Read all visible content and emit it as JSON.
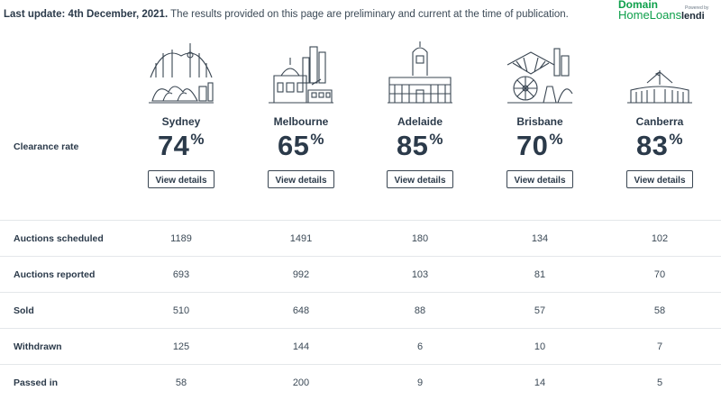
{
  "update": {
    "bold": "Last update: 4th December, 2021.",
    "text": " The results provided on this page are preliminary and current at the time of publication."
  },
  "brand": {
    "line1": "Domain",
    "line2": "HomeLoans",
    "powered": "Powered by",
    "partner": "lendi"
  },
  "clearance_label": "Clearance rate",
  "view_label": "View details",
  "cities": [
    {
      "name": "Sydney",
      "rate": "74",
      "icon": "sydney-skyline-icon"
    },
    {
      "name": "Melbourne",
      "rate": "65",
      "icon": "melbourne-skyline-icon"
    },
    {
      "name": "Adelaide",
      "rate": "85",
      "icon": "adelaide-skyline-icon"
    },
    {
      "name": "Brisbane",
      "rate": "70",
      "icon": "brisbane-skyline-icon"
    },
    {
      "name": "Canberra",
      "rate": "83",
      "icon": "canberra-skyline-icon"
    }
  ],
  "pct_symbol": "%",
  "rows": [
    {
      "label": "Auctions scheduled",
      "values": [
        "1189",
        "1491",
        "180",
        "134",
        "102"
      ]
    },
    {
      "label": "Auctions reported",
      "values": [
        "693",
        "992",
        "103",
        "81",
        "70"
      ]
    },
    {
      "label": "Sold",
      "values": [
        "510",
        "648",
        "88",
        "57",
        "58"
      ]
    },
    {
      "label": "Withdrawn",
      "values": [
        "125",
        "144",
        "6",
        "10",
        "7"
      ]
    },
    {
      "label": "Passed in",
      "values": [
        "58",
        "200",
        "9",
        "14",
        "5"
      ]
    }
  ]
}
